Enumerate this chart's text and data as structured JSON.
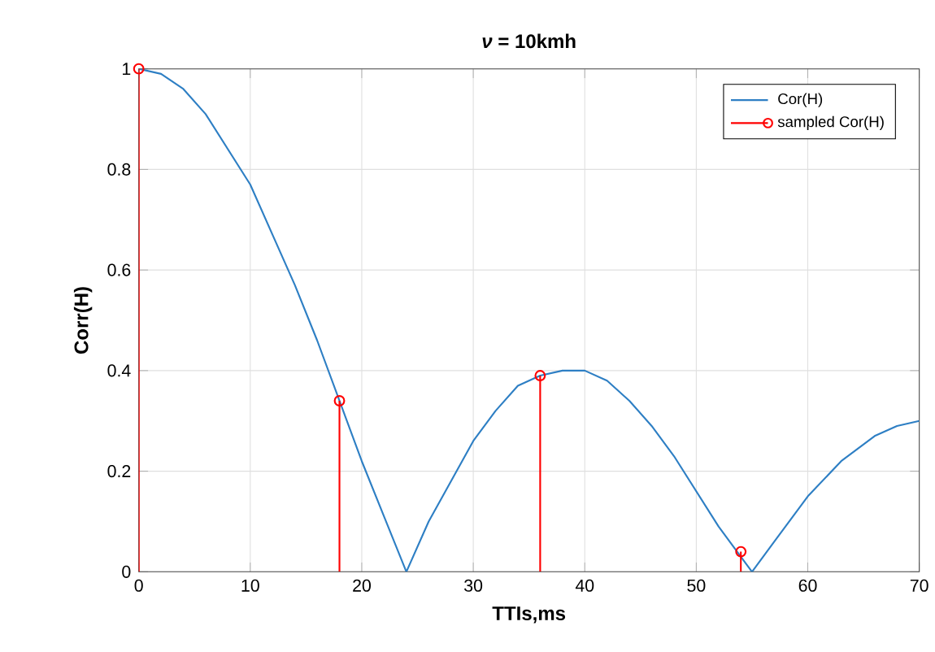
{
  "chart_data": {
    "type": "line",
    "title": "*ν* = 10kmh",
    "xlabel": "TTIs,ms",
    "ylabel": "Corr(H)",
    "xlim": [
      0,
      70
    ],
    "ylim": [
      0,
      1
    ],
    "xticks": [
      0,
      10,
      20,
      30,
      40,
      50,
      60,
      70
    ],
    "yticks": [
      0,
      0.2,
      0.4,
      0.6,
      0.8,
      1
    ],
    "grid": true,
    "legend": "top right",
    "series": [
      {
        "name": "Cor(H)",
        "color": "#2e7fc4",
        "marker": "none",
        "line_style": "solid",
        "x": [
          0,
          2,
          4,
          6,
          8,
          10,
          12,
          14,
          16,
          18,
          20,
          22,
          24,
          26,
          28,
          30,
          32,
          34,
          36,
          38,
          40,
          42,
          44,
          46,
          48,
          50,
          52,
          54,
          55,
          57,
          60,
          63,
          66,
          68,
          70
        ],
        "values": [
          1,
          0.99,
          0.96,
          0.91,
          0.84,
          0.77,
          0.67,
          0.57,
          0.46,
          0.34,
          0.22,
          0.11,
          0,
          0.1,
          0.18,
          0.26,
          0.32,
          0.37,
          0.39,
          0.4,
          0.4,
          0.38,
          0.34,
          0.29,
          0.23,
          0.16,
          0.09,
          0.03,
          0,
          0.06,
          0.15,
          0.22,
          0.27,
          0.29,
          0.3
        ]
      },
      {
        "name": "sampled Cor(H)",
        "type": "lollipop",
        "color": "#ff0000",
        "marker": "circle",
        "x": [
          0,
          18,
          36,
          54
        ],
        "values": [
          1,
          0.34,
          0.39,
          0.04
        ]
      }
    ]
  }
}
